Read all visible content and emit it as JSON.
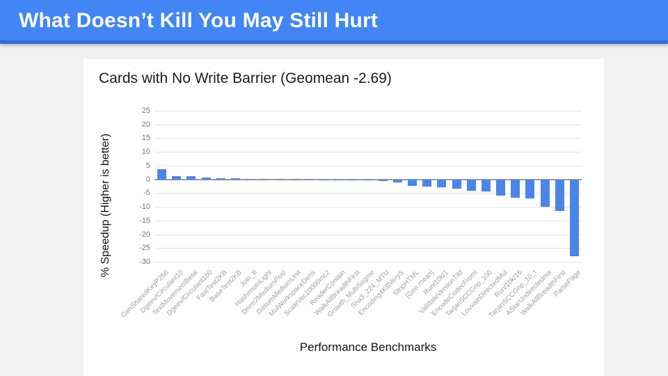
{
  "header": {
    "title": "What Doesn’t Kill You May Still Hurt",
    "background": "#4285f4",
    "accent_bottom": "#3a6bd4",
    "text_color": "#ffffff"
  },
  "page": {
    "background": "#f1f1f2",
    "card_background": "#ffffff"
  },
  "chart_data": {
    "type": "bar",
    "title": "Cards with No Write Barrier (Geomean -2.69)",
    "xlabel": "Performance Benchmarks",
    "ylabel": "% Speedup (Higher is better)",
    "ylim": [
      -30,
      25
    ],
    "yticks": [
      25,
      20,
      15,
      10,
      5,
      0,
      -5,
      -10,
      -15,
      -20,
      -25,
      -30
    ],
    "grid": true,
    "legend": "none",
    "bar_color": "#4a86e8",
    "categories": [
      "GenSharedKeyP256",
      "Dgeev/Circulant10",
      "TextMovementBetw",
      "Dgeev/Circulant100",
      "FastTest2KB",
      "BaseTest2KB",
      "Join_8",
      "HashimotoLight",
      "Dnrm2MediumPosI",
      "DasumMediumUnit",
      "MulWorkspaceDens",
      "ScaleVec10000Inc2",
      "ReaderContain",
      "WalkAllBreadthFirst",
      "Growth_MultiSegme",
      "Sha3_224_MTU",
      "Encoding4KBVeryS",
      "StripHTML",
      "[Geo mean]",
      "Run/10k/1",
      "ValidateVersionTild",
      "EncodeCodecFroml",
      "TarjanSCCGnp_100",
      "LouvainDirectedMul",
      "Run/10k/16",
      "TarjanSCCGnp_10_t",
      "AStarUndirectedma",
      "WalkAllBreadthFirst",
      "ParsePage"
    ],
    "values": [
      3.7,
      1.3,
      1.1,
      0.7,
      0.4,
      0.3,
      0.2,
      0.2,
      0.1,
      0.1,
      0.05,
      0,
      -0.1,
      -0.2,
      -0.3,
      -0.6,
      -1.1,
      -2.4,
      -2.69,
      -2.8,
      -3.5,
      -4.2,
      -4.4,
      -5.9,
      -6.8,
      -6.9,
      -10.1,
      -11.6,
      -28
    ]
  }
}
